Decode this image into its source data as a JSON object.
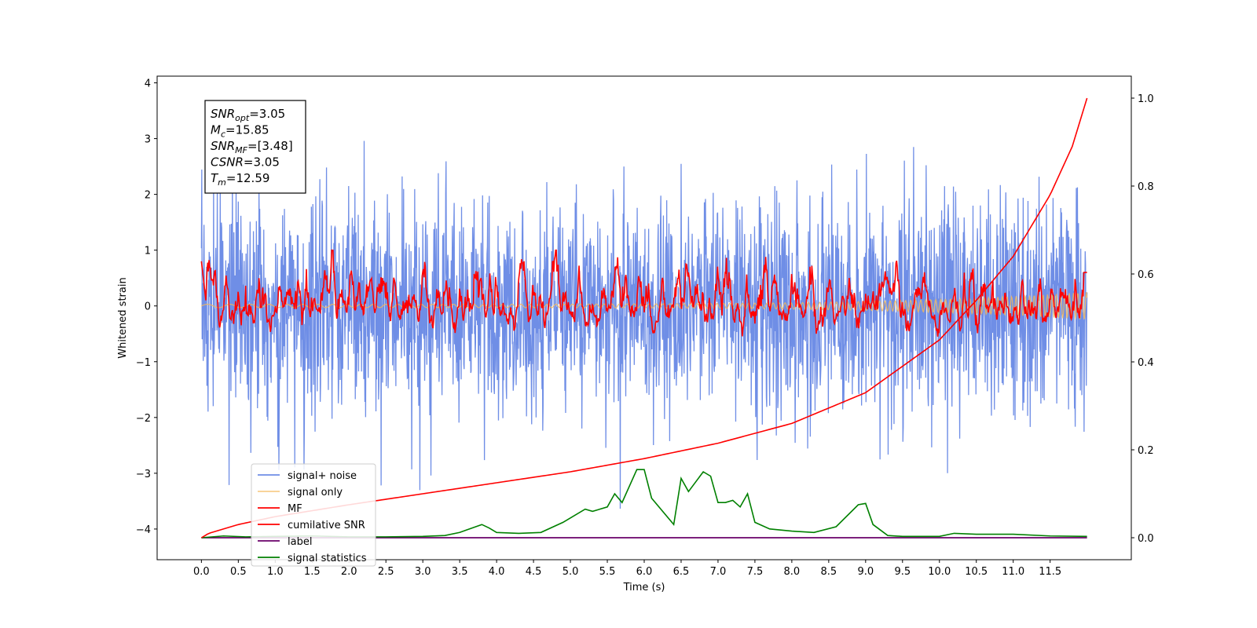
{
  "chart_data": {
    "type": "line",
    "title": "",
    "xlabel": "Time (s)",
    "ylabel": "Whitened strain",
    "xlim": [
      -0.6,
      12.6
    ],
    "ylim": [
      -4.55,
      4.12
    ],
    "y2lim": [
      -0.05,
      1.05
    ],
    "x_ticks": [
      0.0,
      0.5,
      1.0,
      1.5,
      2.0,
      2.5,
      3.0,
      3.5,
      4.0,
      4.5,
      5.0,
      5.5,
      6.0,
      6.5,
      7.0,
      7.5,
      8.0,
      8.5,
      9.0,
      9.5,
      10.0,
      10.5,
      11.0,
      11.5
    ],
    "x_tick_labels": [
      "0.0",
      "0.5",
      "1.0",
      "1.5",
      "2.0",
      "2.5",
      "3.0",
      "3.5",
      "4.0",
      "4.5",
      "5.0",
      "5.5",
      "6.0",
      "6.5",
      "7.0",
      "7.5",
      "8.0",
      "8.5",
      "9.0",
      "9.5",
      "10.0",
      "10.5",
      "11.0",
      "11.5"
    ],
    "y_ticks": [
      -4,
      -3,
      -2,
      -1,
      0,
      1,
      2,
      3,
      4
    ],
    "y_tick_labels": [
      "−4",
      "−3",
      "−2",
      "−1",
      "0",
      "1",
      "2",
      "3",
      "4"
    ],
    "y2_ticks": [
      0.0,
      0.2,
      0.4,
      0.6,
      0.8,
      1.0
    ],
    "y2_tick_labels": [
      "0.0",
      "0.2",
      "0.4",
      "0.6",
      "0.8",
      "1.0"
    ],
    "grid": false,
    "legend_position": "lower-left",
    "colors": {
      "signal_noise": "#6f8ee6",
      "signal_only": "#f5b95a",
      "mf": "#ff0000",
      "cumulative_snr": "#ff0000",
      "label": "#6a006a",
      "signal_statistics": "#008000"
    },
    "info_box": [
      {
        "base": "SNR",
        "sub": "opt",
        "rest": "=3.05"
      },
      {
        "base": "M",
        "sub": "c",
        "rest": "=15.85"
      },
      {
        "base": "SNR",
        "sub": "MF",
        "rest": "=[3.48]"
      },
      {
        "base": "CSNR",
        "sub": "",
        "rest": "=3.05"
      },
      {
        "base": "T",
        "sub": "m",
        "rest": "=12.59"
      }
    ],
    "series": [
      {
        "name": "signal+ noise",
        "axis": "left",
        "description_range": [
          -4.15,
          3.75
        ],
        "x_range": [
          0.0,
          12.0
        ]
      },
      {
        "name": "signal only",
        "axis": "left",
        "x_range": [
          0.0,
          12.0
        ]
      },
      {
        "name": "MF",
        "axis": "left",
        "x_range": [
          0.0,
          12.0
        ]
      },
      {
        "name": "cumilative SNR",
        "axis": "right",
        "x": [
          0.0,
          0.1,
          0.5,
          1.0,
          2.0,
          3.0,
          4.0,
          5.0,
          6.0,
          7.0,
          8.0,
          9.0,
          10.0,
          10.5,
          11.0,
          11.5,
          11.8,
          12.0
        ],
        "values": [
          0.0,
          0.01,
          0.03,
          0.048,
          0.075,
          0.1,
          0.125,
          0.15,
          0.18,
          0.215,
          0.26,
          0.33,
          0.45,
          0.54,
          0.64,
          0.78,
          0.89,
          1.0
        ]
      },
      {
        "name": "label",
        "axis": "right",
        "x": [
          0.0,
          12.0
        ],
        "values": [
          0.0,
          0.0
        ]
      },
      {
        "name": "signal statistics",
        "axis": "right",
        "x": [
          0.0,
          0.3,
          0.6,
          1.0,
          1.5,
          2.0,
          2.5,
          3.0,
          3.3,
          3.5,
          3.6,
          3.8,
          3.9,
          4.0,
          4.3,
          4.6,
          4.9,
          5.0,
          5.2,
          5.3,
          5.5,
          5.6,
          5.7,
          5.9,
          6.0,
          6.1,
          6.4,
          6.5,
          6.6,
          6.8,
          6.9,
          7.0,
          7.1,
          7.2,
          7.3,
          7.4,
          7.5,
          7.7,
          8.0,
          8.3,
          8.6,
          8.9,
          9.0,
          9.1,
          9.3,
          9.5,
          10.0,
          10.2,
          10.5,
          11.0,
          11.5,
          12.0
        ],
        "values": [
          0.0,
          0.004,
          0.002,
          0.003,
          0.004,
          0.002,
          0.002,
          0.003,
          0.005,
          0.012,
          0.018,
          0.03,
          0.022,
          0.012,
          0.01,
          0.012,
          0.035,
          0.045,
          0.065,
          0.06,
          0.07,
          0.1,
          0.08,
          0.155,
          0.155,
          0.09,
          0.03,
          0.135,
          0.105,
          0.15,
          0.14,
          0.08,
          0.08,
          0.085,
          0.07,
          0.1,
          0.035,
          0.02,
          0.015,
          0.012,
          0.025,
          0.075,
          0.078,
          0.03,
          0.005,
          0.003,
          0.003,
          0.01,
          0.008,
          0.008,
          0.004,
          0.003
        ]
      }
    ]
  }
}
